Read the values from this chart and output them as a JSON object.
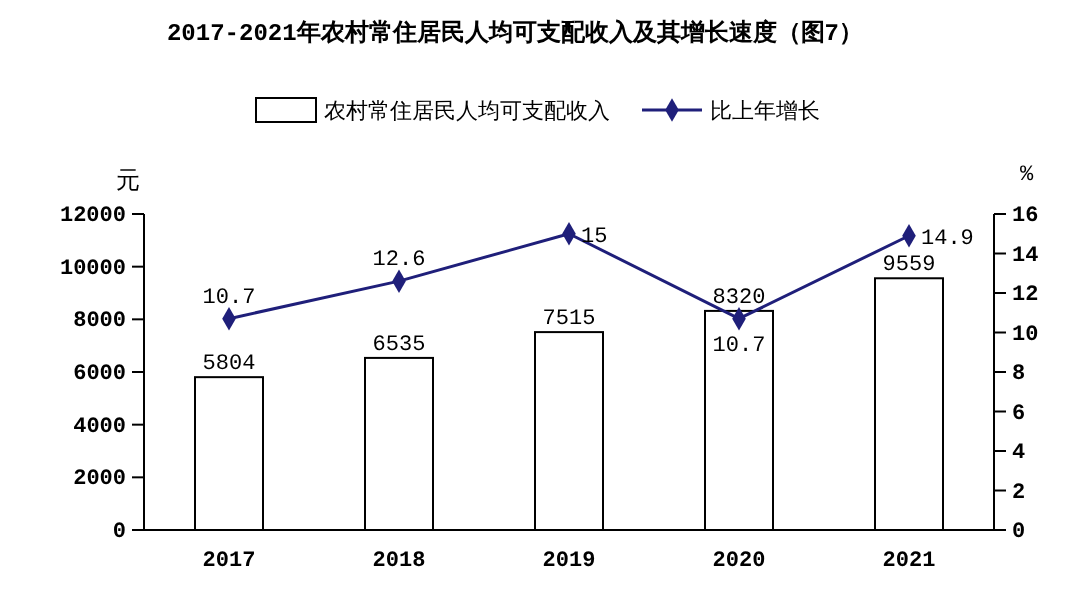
{
  "chart_data": {
    "type": "bar",
    "title": "2017-2021年农村常住居民人均可支配收入及其增长速度（图7）",
    "ylabel": "元",
    "y2label": "%",
    "categories": [
      "2017",
      "2018",
      "2019",
      "2020",
      "2021"
    ],
    "series": [
      {
        "name": "农村常住居民人均可支配收入",
        "color": "#ffffff",
        "values": [
          5804,
          6535,
          7515,
          8320,
          9559
        ]
      },
      {
        "name": "比上年增长",
        "type": "line",
        "axis": "y2",
        "color": "#1f1f7a",
        "values": [
          10.7,
          12.6,
          15,
          10.7,
          14.9
        ]
      }
    ],
    "ylim": [
      0,
      12000
    ],
    "yticks": [
      0,
      2000,
      4000,
      6000,
      8000,
      10000,
      12000
    ],
    "y2lim": [
      0,
      16
    ],
    "y2ticks": [
      0,
      2,
      4,
      6,
      8,
      10,
      12,
      14,
      16
    ],
    "data_labels": true,
    "legend": "top",
    "marker": "diamond",
    "line_style": "solid",
    "grid": false
  }
}
